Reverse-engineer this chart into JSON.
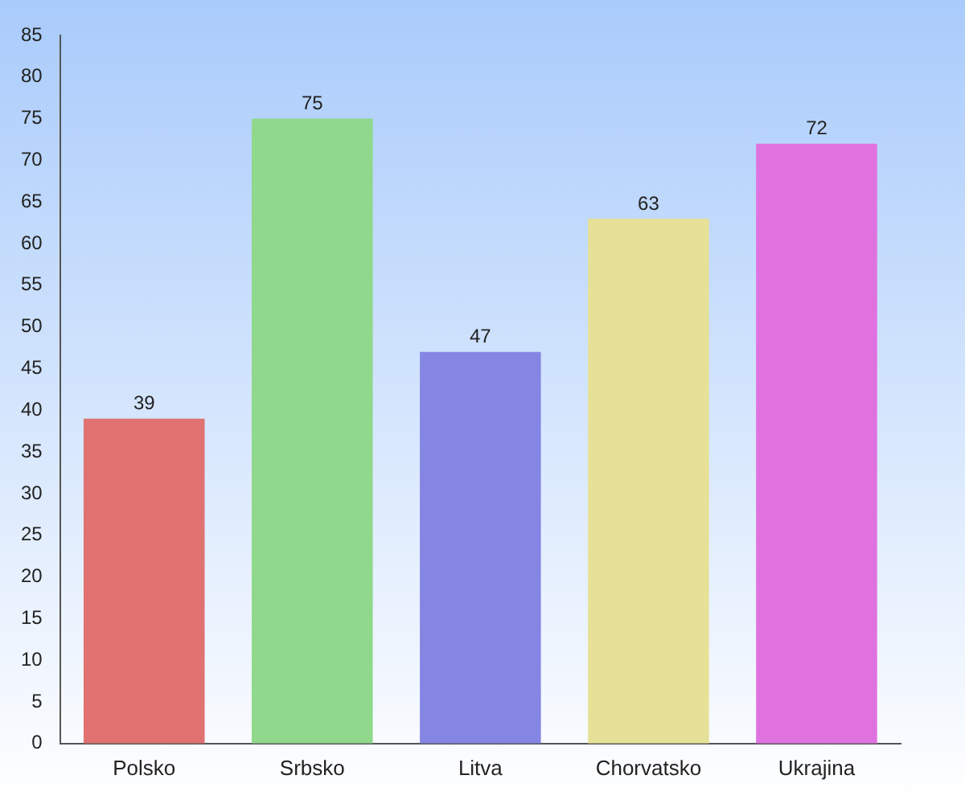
{
  "chart_data": {
    "type": "bar",
    "categories": [
      "Polsko",
      "Srbsko",
      "Litva",
      "Chorvatsko",
      "Ukrajina"
    ],
    "values": [
      39,
      75,
      47,
      63,
      72
    ],
    "colors": [
      "#e07272",
      "#8fd88c",
      "#8585e4",
      "#e6e196",
      "#e072e0"
    ],
    "ylim": [
      0,
      85
    ],
    "yticks": [
      0,
      5,
      10,
      15,
      20,
      25,
      30,
      35,
      40,
      45,
      50,
      55,
      60,
      65,
      70,
      75,
      80,
      85
    ],
    "grid": false,
    "legend": false,
    "data_labels": true
  }
}
